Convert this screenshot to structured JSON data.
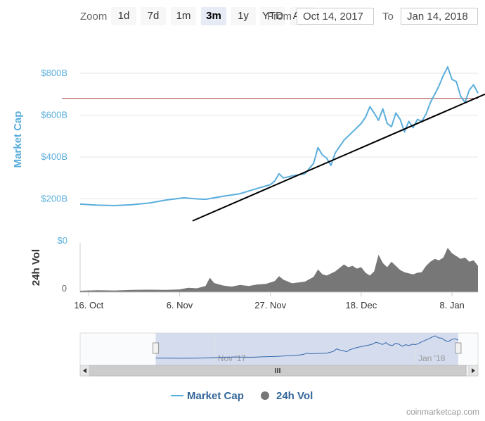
{
  "zoom": {
    "label": "Zoom",
    "buttons": [
      "1d",
      "7d",
      "1m",
      "3m",
      "1y",
      "YTD",
      "ALL"
    ],
    "active": "3m"
  },
  "range": {
    "from_label": "From",
    "from_value": "Oct 14, 2017",
    "to_label": "To",
    "to_value": "Jan 14, 2018"
  },
  "chart_data": {
    "type": "line",
    "series": [
      {
        "name": "Market Cap",
        "color": "#5aaedc",
        "points": [
          [
            "2017-10-14",
            175
          ],
          [
            "2017-10-18",
            170
          ],
          [
            "2017-10-22",
            168
          ],
          [
            "2017-10-26",
            172
          ],
          [
            "2017-10-30",
            180
          ],
          [
            "2017-11-03",
            195
          ],
          [
            "2017-11-07",
            205
          ],
          [
            "2017-11-10",
            200
          ],
          [
            "2017-11-12",
            198
          ],
          [
            "2017-11-16",
            212
          ],
          [
            "2017-11-20",
            225
          ],
          [
            "2017-11-24",
            250
          ],
          [
            "2017-11-27",
            268
          ],
          [
            "2017-11-28",
            285
          ],
          [
            "2017-11-29",
            320
          ],
          [
            "2017-11-30",
            300
          ],
          [
            "2017-12-02",
            310
          ],
          [
            "2017-12-05",
            320
          ],
          [
            "2017-12-07",
            370
          ],
          [
            "2017-12-08",
            445
          ],
          [
            "2017-12-09",
            410
          ],
          [
            "2017-12-10",
            395
          ],
          [
            "2017-12-11",
            360
          ],
          [
            "2017-12-12",
            420
          ],
          [
            "2017-12-14",
            480
          ],
          [
            "2017-12-16",
            520
          ],
          [
            "2017-12-18",
            560
          ],
          [
            "2017-12-19",
            590
          ],
          [
            "2017-12-20",
            640
          ],
          [
            "2017-12-21",
            610
          ],
          [
            "2017-12-22",
            575
          ],
          [
            "2017-12-23",
            630
          ],
          [
            "2017-12-24",
            560
          ],
          [
            "2017-12-25",
            545
          ],
          [
            "2017-12-26",
            610
          ],
          [
            "2017-12-27",
            580
          ],
          [
            "2017-12-28",
            520
          ],
          [
            "2017-12-29",
            570
          ],
          [
            "2017-12-30",
            540
          ],
          [
            "2017-12-31",
            580
          ],
          [
            "2018-01-01",
            570
          ],
          [
            "2018-01-02",
            605
          ],
          [
            "2018-01-03",
            660
          ],
          [
            "2018-01-04",
            700
          ],
          [
            "2018-01-05",
            740
          ],
          [
            "2018-01-06",
            790
          ],
          [
            "2018-01-07",
            830
          ],
          [
            "2018-01-08",
            770
          ],
          [
            "2018-01-09",
            760
          ],
          [
            "2018-01-10",
            690
          ],
          [
            "2018-01-11",
            660
          ],
          [
            "2018-01-12",
            720
          ],
          [
            "2018-01-13",
            745
          ],
          [
            "2018-01-14",
            705
          ]
        ]
      },
      {
        "name": "24h Vol",
        "color": "#777777",
        "points": [
          [
            "2017-10-14",
            5
          ],
          [
            "2017-10-18",
            7
          ],
          [
            "2017-10-22",
            6
          ],
          [
            "2017-10-26",
            8
          ],
          [
            "2017-10-30",
            9
          ],
          [
            "2017-11-03",
            8
          ],
          [
            "2017-11-06",
            10
          ],
          [
            "2017-11-08",
            16
          ],
          [
            "2017-11-10",
            14
          ],
          [
            "2017-11-12",
            22
          ],
          [
            "2017-11-13",
            52
          ],
          [
            "2017-11-14",
            33
          ],
          [
            "2017-11-16",
            24
          ],
          [
            "2017-11-18",
            20
          ],
          [
            "2017-11-20",
            26
          ],
          [
            "2017-11-22",
            22
          ],
          [
            "2017-11-24",
            28
          ],
          [
            "2017-11-26",
            30
          ],
          [
            "2017-11-28",
            40
          ],
          [
            "2017-11-29",
            58
          ],
          [
            "2017-11-30",
            45
          ],
          [
            "2017-12-02",
            32
          ],
          [
            "2017-12-05",
            38
          ],
          [
            "2017-12-07",
            55
          ],
          [
            "2017-12-08",
            82
          ],
          [
            "2017-12-09",
            65
          ],
          [
            "2017-12-10",
            60
          ],
          [
            "2017-12-12",
            75
          ],
          [
            "2017-12-14",
            100
          ],
          [
            "2017-12-15",
            90
          ],
          [
            "2017-12-16",
            95
          ],
          [
            "2017-12-17",
            85
          ],
          [
            "2017-12-18",
            90
          ],
          [
            "2017-12-19",
            70
          ],
          [
            "2017-12-20",
            60
          ],
          [
            "2017-12-21",
            75
          ],
          [
            "2017-12-22",
            135
          ],
          [
            "2017-12-23",
            105
          ],
          [
            "2017-12-24",
            90
          ],
          [
            "2017-12-25",
            110
          ],
          [
            "2017-12-26",
            95
          ],
          [
            "2017-12-27",
            80
          ],
          [
            "2017-12-28",
            72
          ],
          [
            "2017-12-29",
            68
          ],
          [
            "2017-12-30",
            64
          ],
          [
            "2017-12-31",
            70
          ],
          [
            "2018-01-01",
            72
          ],
          [
            "2018-01-02",
            95
          ],
          [
            "2018-01-03",
            110
          ],
          [
            "2018-01-04",
            120
          ],
          [
            "2018-01-05",
            115
          ],
          [
            "2018-01-06",
            125
          ],
          [
            "2018-01-07",
            160
          ],
          [
            "2018-01-08",
            140
          ],
          [
            "2018-01-09",
            130
          ],
          [
            "2018-01-10",
            120
          ],
          [
            "2018-01-11",
            125
          ],
          [
            "2018-01-12",
            110
          ],
          [
            "2018-01-13",
            115
          ],
          [
            "2018-01-14",
            95
          ]
        ]
      }
    ],
    "y_axis": {
      "label": "Market Cap",
      "ticks": [
        "$0",
        "$200B",
        "$400B",
        "$600B",
        "$800B"
      ],
      "tick_values": [
        0,
        200,
        400,
        600,
        800
      ],
      "range": [
        0,
        900
      ]
    },
    "volume_axis": {
      "label": "24h Vol",
      "tick": "0"
    },
    "x_axis": {
      "ticks": [
        "16. Oct",
        "6. Nov",
        "27. Nov",
        "18. Dec",
        "8. Jan"
      ],
      "tick_dates": [
        "2017-10-16",
        "2017-11-06",
        "2017-11-27",
        "2017-12-18",
        "2018-01-08"
      ],
      "range": [
        "2017-10-14",
        "2018-01-14"
      ]
    },
    "annotations": [
      {
        "type": "horizontal-line",
        "color": "#a04040",
        "y": 680
      },
      {
        "type": "trend-line",
        "color": "#000000",
        "from": [
          "2017-11-09",
          95
        ],
        "to": [
          "2018-01-16",
          700
        ]
      }
    ],
    "navigator": {
      "ticks": [
        "Nov '17",
        "Jan '18"
      ],
      "tick_dates": [
        "2017-11-01",
        "2018-01-01"
      ],
      "range": [
        "2017-09-21",
        "2018-01-20"
      ],
      "selected": [
        "2017-10-14",
        "2018-01-14"
      ]
    },
    "legend": {
      "position": "bottom",
      "items": [
        {
          "label": "Market Cap",
          "marker": "line",
          "color": "#5aaedc"
        },
        {
          "label": "24h Vol",
          "marker": "circle",
          "color": "#777777"
        }
      ]
    }
  },
  "credit": "coinmarketcap.com",
  "icons": {
    "scroll_left": "arrow-left-icon",
    "scroll_right": "arrow-right-icon",
    "scroll_grip": "grip-icon",
    "handle": "grip-icon"
  }
}
